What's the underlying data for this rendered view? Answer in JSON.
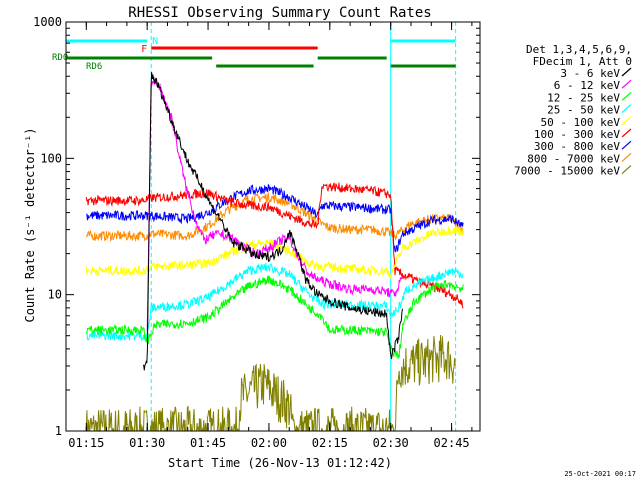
{
  "chart_data": {
    "type": "line",
    "title": "RHESSI Observing Summary Count Rates",
    "xlabel": "Start Time (26-Nov-13 01:12:42)",
    "ylabel": "Count Rate (s⁻¹ detector⁻¹)",
    "y_scale": "log",
    "ylim": [
      1,
      1000
    ],
    "xlim": [
      "01:10",
      "02:52"
    ],
    "y_ticks": [
      {
        "value": 1,
        "label": "1"
      },
      {
        "value": 10,
        "label": "10"
      },
      {
        "value": 100,
        "label": "100"
      },
      {
        "value": 1000,
        "label": "1000"
      }
    ],
    "x_ticks": [
      {
        "value": "01:15",
        "label": "01:15"
      },
      {
        "value": "01:30",
        "label": "01:30"
      },
      {
        "value": "01:45",
        "label": "01:45"
      },
      {
        "value": "02:00",
        "label": "02:00"
      },
      {
        "value": "02:15",
        "label": "02:15"
      },
      {
        "value": "02:30",
        "label": "02:30"
      },
      {
        "value": "02:45",
        "label": "02:45"
      }
    ],
    "legend": {
      "placement": "right",
      "header": [
        "Det 1,3,4,5,6,9,",
        "FDecim 1, Att 0"
      ]
    },
    "series": [
      {
        "name": "3 - 6 keV",
        "color": "#000000",
        "points": [
          [
            "01:29",
            3.0
          ],
          [
            "01:30",
            3.0
          ],
          [
            "01:31",
            420
          ],
          [
            "01:33",
            330
          ],
          [
            "01:36",
            190
          ],
          [
            "01:40",
            95
          ],
          [
            "01:44",
            58
          ],
          [
            "01:46",
            44
          ],
          [
            "01:48",
            36
          ],
          [
            "01:51",
            24
          ],
          [
            "01:54",
            22
          ],
          [
            "01:57",
            19
          ],
          [
            "02:00",
            19
          ],
          [
            "02:03",
            21
          ],
          [
            "02:05",
            29
          ],
          [
            "02:07",
            21
          ],
          [
            "02:09",
            13
          ],
          [
            "02:12",
            10
          ],
          [
            "02:15",
            9
          ],
          [
            "02:20",
            8
          ],
          [
            "02:25",
            7.5
          ],
          [
            "02:29",
            7.2
          ],
          [
            "02:30",
            3.4
          ],
          [
            "02:32",
            5
          ],
          [
            "02:33",
            8
          ]
        ]
      },
      {
        "name": "6 - 12 keV",
        "color": "#ff00ff",
        "points": [
          [
            "01:30",
            5
          ],
          [
            "01:31",
            380
          ],
          [
            "01:33",
            340
          ],
          [
            "01:36",
            200
          ],
          [
            "01:38",
            100
          ],
          [
            "01:40",
            55
          ],
          [
            "01:42",
            35
          ],
          [
            "01:44",
            25
          ],
          [
            "01:46",
            27
          ],
          [
            "01:48",
            28
          ],
          [
            "01:51",
            26
          ],
          [
            "01:54",
            22
          ],
          [
            "01:57",
            20
          ],
          [
            "02:00",
            22
          ],
          [
            "02:03",
            25
          ],
          [
            "02:05",
            26
          ],
          [
            "02:08",
            17
          ],
          [
            "02:10",
            14
          ],
          [
            "02:12",
            13
          ],
          [
            "02:15",
            12
          ],
          [
            "02:20",
            11
          ],
          [
            "02:25",
            11
          ],
          [
            "02:29",
            10.5
          ],
          [
            "02:31",
            10
          ],
          [
            "02:33",
            14
          ]
        ]
      },
      {
        "name": "12 - 25 keV",
        "color": "#00ff00",
        "points": [
          [
            "01:15",
            5.5
          ],
          [
            "01:29",
            5.5
          ],
          [
            "01:30",
            4.5
          ],
          [
            "01:32",
            6
          ],
          [
            "01:40",
            6.2
          ],
          [
            "01:45",
            6.8
          ],
          [
            "01:50",
            9
          ],
          [
            "01:55",
            11.5
          ],
          [
            "02:00",
            13
          ],
          [
            "02:05",
            11
          ],
          [
            "02:10",
            8
          ],
          [
            "02:13",
            7
          ],
          [
            "02:15",
            5.5
          ],
          [
            "02:20",
            5.5
          ],
          [
            "02:25",
            5.4
          ],
          [
            "02:29",
            5.3
          ],
          [
            "02:30",
            4
          ],
          [
            "02:32",
            3.5
          ],
          [
            "02:33",
            6
          ],
          [
            "02:36",
            9
          ],
          [
            "02:40",
            11
          ],
          [
            "02:44",
            12
          ],
          [
            "02:48",
            11
          ]
        ]
      },
      {
        "name": "25 - 50 keV",
        "color": "#00ffff",
        "points": [
          [
            "01:15",
            5
          ],
          [
            "01:29",
            5
          ],
          [
            "01:30",
            5
          ],
          [
            "01:31",
            8
          ],
          [
            "01:40",
            8.5
          ],
          [
            "01:45",
            9.5
          ],
          [
            "01:50",
            12
          ],
          [
            "01:55",
            15
          ],
          [
            "02:00",
            16
          ],
          [
            "02:05",
            14
          ],
          [
            "02:10",
            10
          ],
          [
            "02:13",
            8.5
          ],
          [
            "02:15",
            8.5
          ],
          [
            "02:20",
            8.4
          ],
          [
            "02:25",
            8.3
          ],
          [
            "02:29",
            8.2
          ],
          [
            "02:30",
            7
          ],
          [
            "02:32",
            8
          ],
          [
            "02:34",
            11
          ],
          [
            "02:40",
            13
          ],
          [
            "02:45",
            15
          ],
          [
            "02:48",
            14
          ]
        ]
      },
      {
        "name": "50 - 100 keV",
        "color": "#ffff00",
        "points": [
          [
            "01:15",
            15
          ],
          [
            "01:29",
            15
          ],
          [
            "01:31",
            16
          ],
          [
            "01:40",
            16.5
          ],
          [
            "01:45",
            17
          ],
          [
            "01:50",
            20
          ],
          [
            "01:55",
            23
          ],
          [
            "02:00",
            24
          ],
          [
            "02:05",
            21
          ],
          [
            "02:10",
            17
          ],
          [
            "02:13",
            16
          ],
          [
            "02:15",
            16
          ],
          [
            "02:20",
            15.5
          ],
          [
            "02:25",
            15
          ],
          [
            "02:29",
            15
          ],
          [
            "02:30",
            14
          ],
          [
            "02:33",
            22
          ],
          [
            "02:40",
            28
          ],
          [
            "02:45",
            30
          ],
          [
            "02:48",
            29
          ]
        ]
      },
      {
        "name": "100 - 300 keV",
        "color": "#ff0000",
        "points": [
          [
            "01:15",
            49
          ],
          [
            "01:29",
            49
          ],
          [
            "01:31",
            51
          ],
          [
            "01:40",
            54
          ],
          [
            "01:45",
            56
          ],
          [
            "01:50",
            48
          ],
          [
            "01:55",
            45
          ],
          [
            "02:00",
            44
          ],
          [
            "02:05",
            38
          ],
          [
            "02:10",
            33
          ],
          [
            "02:12",
            32
          ],
          [
            "02:13",
            63
          ],
          [
            "02:20",
            60
          ],
          [
            "02:25",
            58
          ],
          [
            "02:29",
            55
          ],
          [
            "02:30",
            54
          ],
          [
            "02:31",
            15
          ],
          [
            "02:33",
            14
          ],
          [
            "02:38",
            12
          ],
          [
            "02:42",
            11
          ],
          [
            "02:45",
            10
          ],
          [
            "02:48",
            8.5
          ]
        ]
      },
      {
        "name": "300 - 800 keV",
        "color": "#0000ff",
        "points": [
          [
            "01:15",
            38
          ],
          [
            "01:29",
            38
          ],
          [
            "01:31",
            38
          ],
          [
            "01:40",
            36
          ],
          [
            "01:45",
            40
          ],
          [
            "01:50",
            50
          ],
          [
            "01:55",
            58
          ],
          [
            "02:00",
            60
          ],
          [
            "02:05",
            52
          ],
          [
            "02:10",
            42
          ],
          [
            "02:12",
            38
          ],
          [
            "02:13",
            45
          ],
          [
            "02:20",
            44
          ],
          [
            "02:25",
            43
          ],
          [
            "02:29",
            42
          ],
          [
            "02:30",
            42
          ],
          [
            "02:31",
            20
          ],
          [
            "02:33",
            28
          ],
          [
            "02:40",
            35
          ],
          [
            "02:45",
            36
          ],
          [
            "02:48",
            31
          ]
        ]
      },
      {
        "name": "800 - 7000 keV",
        "color": "#ff8c00",
        "points": [
          [
            "01:15",
            27
          ],
          [
            "01:29",
            27
          ],
          [
            "01:31",
            28
          ],
          [
            "01:40",
            27
          ],
          [
            "01:45",
            32
          ],
          [
            "01:50",
            42
          ],
          [
            "01:55",
            50
          ],
          [
            "02:00",
            52
          ],
          [
            "02:05",
            47
          ],
          [
            "02:10",
            38
          ],
          [
            "02:13",
            33
          ],
          [
            "02:15",
            31
          ],
          [
            "02:20",
            30
          ],
          [
            "02:25",
            30
          ],
          [
            "02:29",
            29
          ],
          [
            "02:30",
            28
          ],
          [
            "02:31",
            27
          ],
          [
            "02:35",
            33
          ],
          [
            "02:40",
            36
          ],
          [
            "02:45",
            36
          ],
          [
            "02:48",
            29
          ]
        ]
      },
      {
        "name": "7000 - 15000 keV",
        "color": "#808000",
        "points": [
          [
            "01:15",
            1
          ],
          [
            "01:30",
            1
          ],
          [
            "01:52",
            1
          ],
          [
            "01:53",
            1.7
          ],
          [
            "01:56",
            2
          ],
          [
            "01:59",
            2.2
          ],
          [
            "02:02",
            1.8
          ],
          [
            "02:05",
            1.5
          ],
          [
            "02:06",
            1
          ],
          [
            "02:31",
            1
          ],
          [
            "02:32",
            3
          ],
          [
            "02:38",
            3.2
          ],
          [
            "02:44",
            3.5
          ],
          [
            "02:46",
            3
          ]
        ]
      }
    ],
    "annotations": {
      "saa_bars": [
        {
          "label": "N",
          "color": "#00ffff",
          "start": "01:10",
          "end": "01:30"
        },
        {
          "label": "",
          "color": "#00ffff",
          "start": "02:30",
          "end": "02:46"
        }
      ],
      "flare_bar": {
        "label": "F",
        "color": "#ff0000",
        "start": "01:31",
        "end": "02:12"
      },
      "rd0_label": "RD0",
      "rd6_label": "RD6",
      "data_gap_bars": [
        {
          "start": "01:10",
          "end": "01:46"
        },
        {
          "start": "01:47",
          "end": "02:11"
        },
        {
          "start": "02:12",
          "end": "02:29"
        },
        {
          "start": "02:30",
          "end": "02:46"
        }
      ],
      "vertical_markers": [
        {
          "time": "01:31",
          "color": "#00ffff",
          "style": "dashed"
        },
        {
          "time": "02:30",
          "color": "#00ffff",
          "style": "solid"
        },
        {
          "time": "02:46",
          "color": "#00ffff",
          "style": "dashed"
        }
      ]
    },
    "timestamp": "25-Oct-2021 00:17"
  }
}
